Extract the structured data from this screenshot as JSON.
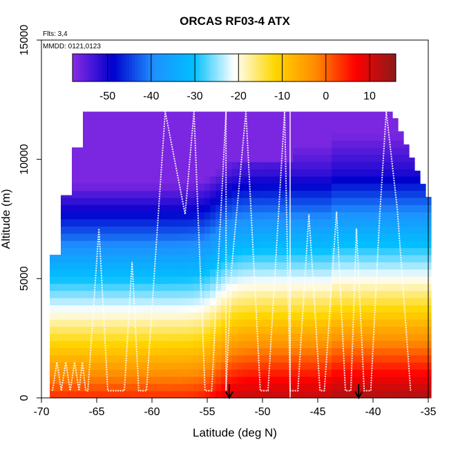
{
  "chart_data": {
    "type": "heatmap",
    "title": "ORCAS RF03-4 ATX",
    "flights_note": "Flts: 3,4",
    "date_note": "MMDD: 0121,0123",
    "xlabel": "Latitude (deg N)",
    "ylabel": "Altitude (m)",
    "xlim": [
      -70,
      -35
    ],
    "ylim": [
      0,
      15000
    ],
    "x_ticks": [
      -70,
      -65,
      -60,
      -55,
      -50,
      -45,
      -40,
      -35
    ],
    "y_ticks": [
      0,
      5000,
      10000,
      15000
    ],
    "colorbar": {
      "range": [
        -58,
        16
      ],
      "ticks": [
        -50,
        -40,
        -30,
        -20,
        -10,
        0,
        10
      ],
      "colors": [
        "#8a2be2",
        "#0000cd",
        "#1e90ff",
        "#00bfff",
        "#ffffff",
        "#ffd700",
        "#ff8c00",
        "#ff0000",
        "#8b1a1a"
      ]
    },
    "top_ceiling_alt": 12000,
    "gap_latitude": -47.5,
    "markers": [
      -53,
      -41.3
    ]
  }
}
